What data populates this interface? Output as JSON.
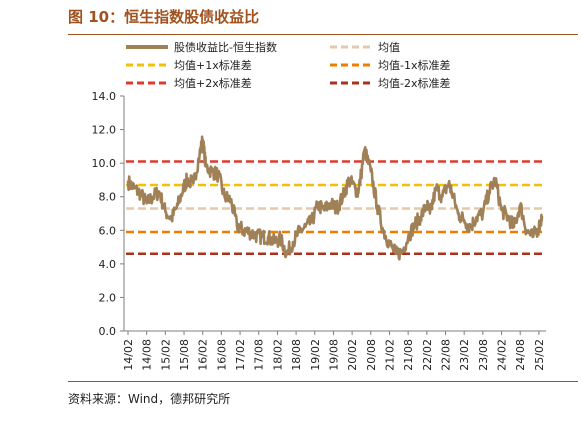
{
  "figure": {
    "title": "图 10：恒生指数股债收益比",
    "source": "资料来源：Wind，德邦研究所"
  },
  "chart_data": {
    "type": "line",
    "ylim": [
      0.0,
      14.0
    ],
    "yticks": [
      "0.0",
      "2.0",
      "4.0",
      "6.0",
      "8.0",
      "10.0",
      "12.0",
      "14.0"
    ],
    "xticks": [
      "14/02",
      "14/08",
      "15/02",
      "15/08",
      "16/02",
      "16/08",
      "17/02",
      "17/08",
      "18/02",
      "18/08",
      "19/02",
      "19/08",
      "20/02",
      "20/08",
      "21/02",
      "21/08",
      "22/02",
      "22/08",
      "23/02",
      "23/08",
      "24/02",
      "24/08",
      "25/02"
    ],
    "x_start": "2014-02",
    "x_end": "2025-03",
    "grid": false,
    "legend": [
      {
        "label": "股债收益比-恒生指数",
        "color": "#a08057",
        "style": "solid"
      },
      {
        "label": "均值",
        "color": "#e6c9a8",
        "style": "dashed"
      },
      {
        "label": "均值+1x标准差",
        "color": "#f5c000",
        "style": "dashed"
      },
      {
        "label": "均值-1x标准差",
        "color": "#f07d00",
        "style": "dashed"
      },
      {
        "label": "均值+2x标准差",
        "color": "#e03a2e",
        "style": "dashed"
      },
      {
        "label": "均值-2x标准差",
        "color": "#a8321e",
        "style": "dashed"
      }
    ],
    "reference_lines": {
      "mean": 7.3,
      "plus1sd": 8.7,
      "minus1sd": 5.9,
      "plus2sd": 10.1,
      "minus2sd": 4.6
    },
    "series": [
      {
        "name": "股债收益比-恒生指数",
        "x": [
          "2014-02",
          "2014-04",
          "2014-06",
          "2014-08",
          "2014-10",
          "2014-12",
          "2015-02",
          "2015-04",
          "2015-06",
          "2015-08",
          "2015-09",
          "2015-11",
          "2016-01",
          "2016-02",
          "2016-03",
          "2016-05",
          "2016-07",
          "2016-09",
          "2016-11",
          "2017-01",
          "2017-03",
          "2017-05",
          "2017-07",
          "2017-09",
          "2017-11",
          "2018-01",
          "2018-03",
          "2018-05",
          "2018-07",
          "2018-09",
          "2018-11",
          "2019-01",
          "2019-03",
          "2019-05",
          "2019-07",
          "2019-09",
          "2019-11",
          "2020-01",
          "2020-03",
          "2020-04",
          "2020-06",
          "2020-08",
          "2020-10",
          "2020-12",
          "2021-02",
          "2021-04",
          "2021-06",
          "2021-08",
          "2021-10",
          "2021-12",
          "2022-02",
          "2022-03",
          "2022-05",
          "2022-07",
          "2022-09",
          "2022-10",
          "2022-12",
          "2023-02",
          "2023-04",
          "2023-06",
          "2023-08",
          "2023-10",
          "2023-12",
          "2024-02",
          "2024-04",
          "2024-06",
          "2024-08",
          "2024-10",
          "2024-12",
          "2025-02",
          "2025-03"
        ],
        "values": [
          8.9,
          8.5,
          8.2,
          7.6,
          8.0,
          8.3,
          7.1,
          6.7,
          7.5,
          8.6,
          9.0,
          8.8,
          10.5,
          11.4,
          9.8,
          9.5,
          9.3,
          8.0,
          7.8,
          6.3,
          6.0,
          5.9,
          5.7,
          5.6,
          5.6,
          5.3,
          5.5,
          4.6,
          5.3,
          5.9,
          6.2,
          6.5,
          7.5,
          7.2,
          7.6,
          7.3,
          8.0,
          9.0,
          8.5,
          8.2,
          10.8,
          9.5,
          7.5,
          6.0,
          5.2,
          4.6,
          4.7,
          5.6,
          6.3,
          6.8,
          7.5,
          7.0,
          8.5,
          8.0,
          8.8,
          8.3,
          7.0,
          6.6,
          6.2,
          6.8,
          7.0,
          8.3,
          9.0,
          7.2,
          6.8,
          6.2,
          7.5,
          6.0,
          5.6,
          6.2,
          6.8
        ]
      }
    ]
  }
}
